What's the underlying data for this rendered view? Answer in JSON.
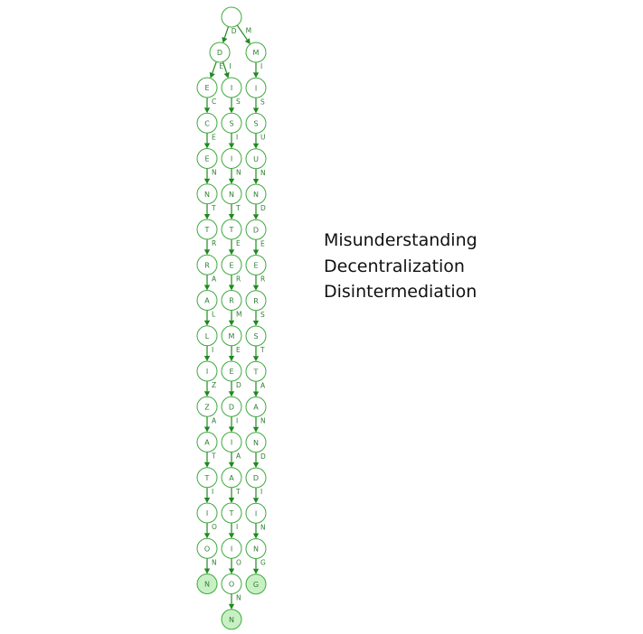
{
  "diagram": {
    "root": "",
    "branches": [
      {
        "edges": [
          "D",
          "E",
          "C",
          "E",
          "N",
          "T",
          "R",
          "A",
          "L",
          "I",
          "Z",
          "A",
          "T",
          "I",
          "O",
          "N"
        ],
        "nodes": [
          "D",
          "E",
          "C",
          "E",
          "N",
          "T",
          "R",
          "A",
          "L",
          "I",
          "Z",
          "A",
          "T",
          "I",
          "O",
          "N"
        ],
        "terminal_last": true
      },
      {
        "edges": [
          "I",
          "S",
          "I",
          "N",
          "T",
          "E",
          "R",
          "M",
          "E",
          "D",
          "I",
          "A",
          "T",
          "I",
          "O",
          "N"
        ],
        "nodes": [
          "I",
          "S",
          "I",
          "N",
          "T",
          "E",
          "R",
          "M",
          "E",
          "D",
          "I",
          "A",
          "T",
          "I",
          "O",
          "N"
        ],
        "terminal_last": true
      },
      {
        "edges": [
          "M",
          "I",
          "S",
          "U",
          "N",
          "D",
          "E",
          "R",
          "S",
          "T",
          "A",
          "N",
          "D",
          "I",
          "N",
          "G"
        ],
        "nodes": [
          "M",
          "I",
          "S",
          "U",
          "N",
          "D",
          "E",
          "R",
          "S",
          "T",
          "A",
          "N",
          "D",
          "I",
          "N",
          "G"
        ],
        "terminal_last": true
      }
    ],
    "colors": {
      "stroke": "#3ea83e",
      "terminal_fill": "#c9f0c4",
      "edge": "#1f8a1f",
      "text": "#2e7d32"
    }
  },
  "words": [
    "Misunderstanding",
    "Decentralization",
    "Disintermediation"
  ]
}
